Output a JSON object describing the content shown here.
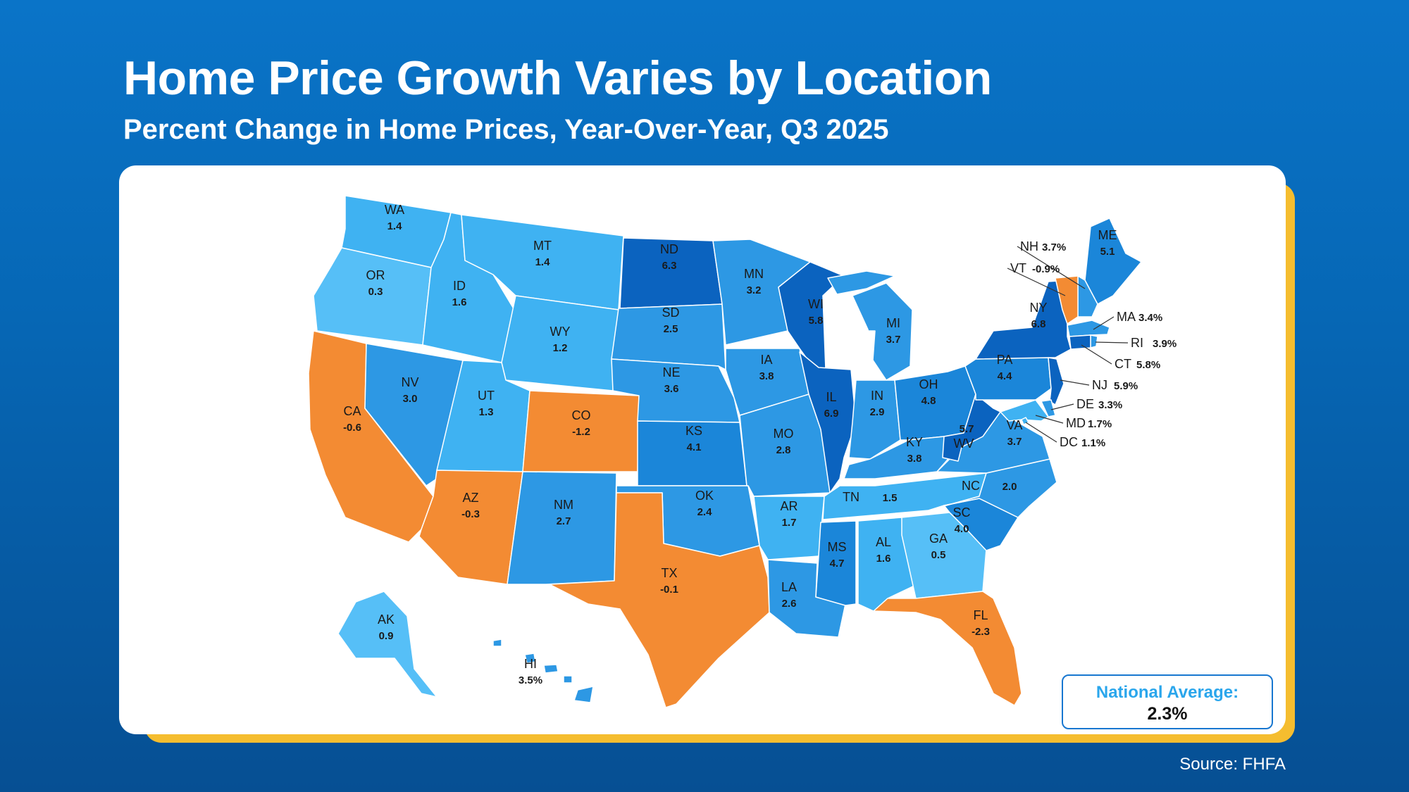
{
  "title": "Home Price Growth Varies by Location",
  "subtitle": "Percent Change in Home Prices, Year-Over-Year, Q3 2025",
  "national_average": {
    "label": "National Average:",
    "value": "2.3%"
  },
  "source": "Source: FHFA",
  "colors": {
    "negative": "#f38b33",
    "light": "#56bff7",
    "medium_light": "#3fb2f2",
    "medium": "#2d98e4",
    "strong": "#1b86d9",
    "strongest": "#0b63bf",
    "border_line": "#ffffff"
  },
  "chart_data": {
    "type": "choropleth",
    "title": "Home Price Growth Varies by Location",
    "subtitle": "Percent Change in Home Prices, Year-Over-Year, Q3 2025",
    "states": [
      {
        "code": "WA",
        "value": 1.4,
        "display": "1.4"
      },
      {
        "code": "OR",
        "value": 0.3,
        "display": "0.3"
      },
      {
        "code": "CA",
        "value": -0.6,
        "display": "-0.6"
      },
      {
        "code": "NV",
        "value": 3.0,
        "display": "3.0"
      },
      {
        "code": "ID",
        "value": 1.6,
        "display": "1.6"
      },
      {
        "code": "MT",
        "value": 1.4,
        "display": "1.4"
      },
      {
        "code": "WY",
        "value": 1.2,
        "display": "1.2"
      },
      {
        "code": "UT",
        "value": 1.3,
        "display": "1.3"
      },
      {
        "code": "CO",
        "value": -1.2,
        "display": "-1.2"
      },
      {
        "code": "AZ",
        "value": -0.3,
        "display": "-0.3"
      },
      {
        "code": "NM",
        "value": 2.7,
        "display": "2.7"
      },
      {
        "code": "ND",
        "value": 6.3,
        "display": "6.3"
      },
      {
        "code": "SD",
        "value": 2.5,
        "display": "2.5"
      },
      {
        "code": "NE",
        "value": 3.6,
        "display": "3.6"
      },
      {
        "code": "KS",
        "value": 4.1,
        "display": "4.1"
      },
      {
        "code": "OK",
        "value": 2.4,
        "display": "2.4"
      },
      {
        "code": "TX",
        "value": -0.1,
        "display": "-0.1"
      },
      {
        "code": "MN",
        "value": 3.2,
        "display": "3.2"
      },
      {
        "code": "IA",
        "value": 3.8,
        "display": "3.8"
      },
      {
        "code": "MO",
        "value": 2.8,
        "display": "2.8"
      },
      {
        "code": "AR",
        "value": 1.7,
        "display": "1.7"
      },
      {
        "code": "LA",
        "value": 2.6,
        "display": "2.6"
      },
      {
        "code": "WI",
        "value": 5.8,
        "display": "5.8"
      },
      {
        "code": "IL",
        "value": 6.9,
        "display": "6.9"
      },
      {
        "code": "MI",
        "value": 3.7,
        "display": "3.7"
      },
      {
        "code": "IN",
        "value": 2.9,
        "display": "2.9"
      },
      {
        "code": "OH",
        "value": 4.8,
        "display": "4.8"
      },
      {
        "code": "KY",
        "value": 3.8,
        "display": "3.8"
      },
      {
        "code": "TN",
        "value": 1.5,
        "display": "1.5"
      },
      {
        "code": "MS",
        "value": 4.7,
        "display": "4.7"
      },
      {
        "code": "AL",
        "value": 1.6,
        "display": "1.6"
      },
      {
        "code": "GA",
        "value": 0.5,
        "display": "0.5"
      },
      {
        "code": "FL",
        "value": -2.3,
        "display": "-2.3"
      },
      {
        "code": "SC",
        "value": 4.0,
        "display": "4.0"
      },
      {
        "code": "NC",
        "value": 2.0,
        "display": "2.0"
      },
      {
        "code": "VA",
        "value": 3.7,
        "display": "3.7"
      },
      {
        "code": "WV",
        "value": 5.7,
        "display": "5.7"
      },
      {
        "code": "PA",
        "value": 4.4,
        "display": "4.4"
      },
      {
        "code": "NY",
        "value": 6.8,
        "display": "6.8"
      },
      {
        "code": "ME",
        "value": 5.1,
        "display": "5.1"
      },
      {
        "code": "AK",
        "value": 0.9,
        "display": "0.9"
      },
      {
        "code": "HI",
        "value": 3.5,
        "display": "3.5%"
      },
      {
        "code": "NH",
        "value": 3.7,
        "display": "3.7%"
      },
      {
        "code": "VT",
        "value": -0.9,
        "display": "-0.9%"
      },
      {
        "code": "MA",
        "value": 3.4,
        "display": "3.4%"
      },
      {
        "code": "RI",
        "value": 3.9,
        "display": "3.9%"
      },
      {
        "code": "CT",
        "value": 5.8,
        "display": "5.8%"
      },
      {
        "code": "NJ",
        "value": 5.9,
        "display": "5.9%"
      },
      {
        "code": "DE",
        "value": 3.3,
        "display": "3.3%"
      },
      {
        "code": "MD",
        "value": 1.7,
        "display": "1.7%"
      },
      {
        "code": "DC",
        "value": 1.1,
        "display": "1.1%"
      }
    ]
  }
}
